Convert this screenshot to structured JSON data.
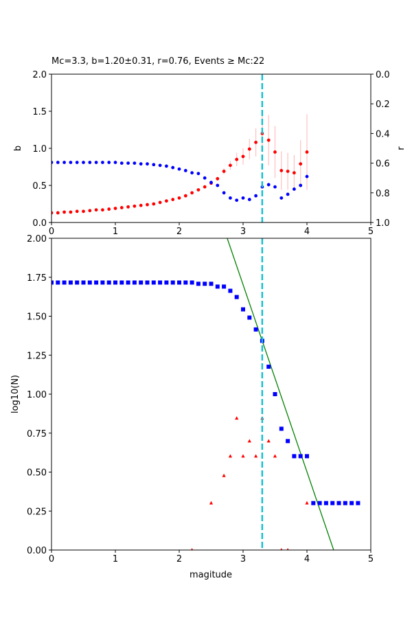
{
  "chart_data": [
    {
      "type": "scatter",
      "title": "Mc=3.3, b=1.20±0.31, r=0.76, Events ≥ Mc:22",
      "xlabel": "",
      "ylabel": "b",
      "ylabel_right": "r",
      "xlim": [
        0,
        5
      ],
      "ylim": [
        0,
        2
      ],
      "ylim_right": [
        1,
        0
      ],
      "xticks": [
        "0",
        "1",
        "2",
        "3",
        "4",
        "5"
      ],
      "yticks": [
        "0.0",
        "0.5",
        "1.0",
        "1.5",
        "2.0"
      ],
      "yticks_right": [
        "0.0",
        "0.2",
        "0.4",
        "0.6",
        "0.8",
        "1.0"
      ],
      "mc": 3.3,
      "colors": {
        "b": "#ff0000",
        "err": "#ffc0c0",
        "r": "#0000ff",
        "mc": "#17becf"
      },
      "x": [
        0.0,
        0.1,
        0.2,
        0.3,
        0.4,
        0.5,
        0.6,
        0.7,
        0.8,
        0.9,
        1.0,
        1.1,
        1.2,
        1.3,
        1.4,
        1.5,
        1.6,
        1.7,
        1.8,
        1.9,
        2.0,
        2.1,
        2.2,
        2.3,
        2.4,
        2.5,
        2.6,
        2.7,
        2.8,
        2.9,
        3.0,
        3.1,
        3.2,
        3.3,
        3.4,
        3.5,
        3.6,
        3.7,
        3.8,
        3.9,
        4.0
      ],
      "b": [
        0.13,
        0.13,
        0.14,
        0.14,
        0.15,
        0.15,
        0.16,
        0.17,
        0.17,
        0.18,
        0.19,
        0.2,
        0.21,
        0.22,
        0.23,
        0.24,
        0.25,
        0.27,
        0.29,
        0.31,
        0.33,
        0.36,
        0.4,
        0.44,
        0.48,
        0.53,
        0.59,
        0.69,
        0.77,
        0.85,
        0.89,
        0.99,
        1.08,
        1.2,
        1.11,
        0.95,
        0.7,
        0.69,
        0.67,
        0.79,
        0.95
      ],
      "b_err": [
        0.005,
        0.005,
        0.005,
        0.005,
        0.005,
        0.005,
        0.005,
        0.005,
        0.005,
        0.005,
        0.005,
        0.005,
        0.005,
        0.005,
        0.005,
        0.005,
        0.005,
        0.005,
        0.01,
        0.01,
        0.01,
        0.01,
        0.01,
        0.015,
        0.02,
        0.02,
        0.03,
        0.04,
        0.06,
        0.09,
        0.11,
        0.14,
        0.19,
        0.25,
        0.34,
        0.35,
        0.26,
        0.25,
        0.24,
        0.32,
        0.51
      ],
      "r": [
        0.595,
        0.595,
        0.595,
        0.595,
        0.595,
        0.595,
        0.595,
        0.595,
        0.595,
        0.595,
        0.595,
        0.6,
        0.6,
        0.6,
        0.605,
        0.605,
        0.61,
        0.615,
        0.62,
        0.63,
        0.64,
        0.65,
        0.665,
        0.67,
        0.7,
        0.73,
        0.75,
        0.8,
        0.835,
        0.85,
        0.835,
        0.845,
        0.82,
        0.76,
        0.745,
        0.76,
        0.835,
        0.81,
        0.775,
        0.75,
        0.69
      ]
    },
    {
      "type": "scatter",
      "title": "",
      "xlabel": "magitude",
      "ylabel": "log10(N)",
      "xlim": [
        0,
        5
      ],
      "ylim": [
        0,
        2
      ],
      "xticks": [
        "0",
        "1",
        "2",
        "3",
        "4",
        "5"
      ],
      "yticks": [
        "0.00",
        "0.25",
        "0.50",
        "0.75",
        "1.00",
        "1.25",
        "1.50",
        "1.75",
        "2.00"
      ],
      "mc": 3.3,
      "fit": {
        "a": 5.302,
        "b": 1.2
      },
      "colors": {
        "cum": "#0000ff",
        "noncum": "#ff0000",
        "fit": "#008000",
        "mc": "#17becf"
      },
      "cumulative": {
        "x": [
          0.0,
          0.1,
          0.2,
          0.3,
          0.4,
          0.5,
          0.6,
          0.7,
          0.8,
          0.9,
          1.0,
          1.1,
          1.2,
          1.3,
          1.4,
          1.5,
          1.6,
          1.7,
          1.8,
          1.9,
          2.0,
          2.1,
          2.2,
          2.3,
          2.4,
          2.5,
          2.6,
          2.7,
          2.8,
          2.9,
          3.0,
          3.1,
          3.2,
          3.3,
          3.4,
          3.5,
          3.6,
          3.7,
          3.8,
          3.9,
          4.0,
          4.1,
          4.2,
          4.3,
          4.4,
          4.5,
          4.6,
          4.7,
          4.8
        ],
        "y": [
          1.716,
          1.716,
          1.716,
          1.716,
          1.716,
          1.716,
          1.716,
          1.716,
          1.716,
          1.716,
          1.716,
          1.716,
          1.716,
          1.716,
          1.716,
          1.716,
          1.716,
          1.716,
          1.716,
          1.716,
          1.716,
          1.716,
          1.716,
          1.708,
          1.708,
          1.708,
          1.69,
          1.69,
          1.663,
          1.623,
          1.544,
          1.491,
          1.415,
          1.342,
          1.176,
          1.0,
          0.778,
          0.699,
          0.602,
          0.602,
          0.602,
          0.301,
          0.301,
          0.301,
          0.301,
          0.301,
          0.301,
          0.301,
          0.301
        ]
      },
      "noncumulative": {
        "x": [
          2.2,
          2.5,
          2.7,
          2.8,
          2.9,
          3.0,
          3.1,
          3.2,
          3.3,
          3.4,
          3.5,
          3.6,
          3.7,
          4.0
        ],
        "y": [
          0.0,
          0.301,
          0.477,
          0.602,
          0.845,
          0.602,
          0.699,
          0.602,
          0.845,
          0.699,
          0.602,
          0.0,
          0.0,
          0.301
        ]
      }
    }
  ]
}
